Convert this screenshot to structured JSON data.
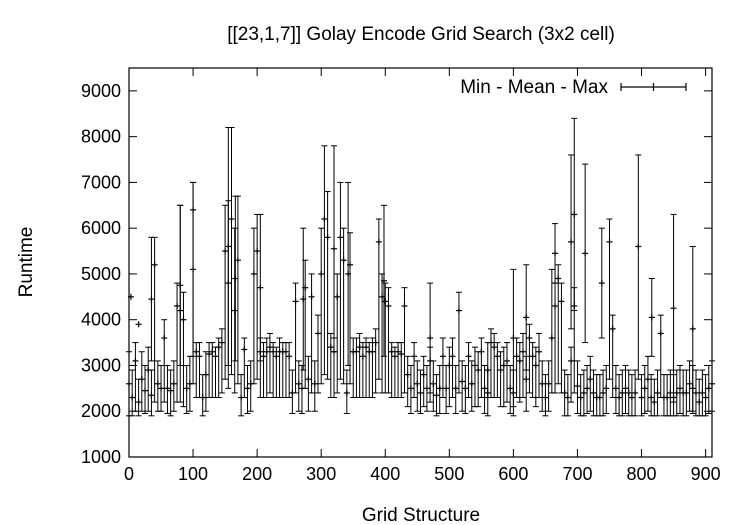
{
  "chart_data": {
    "type": "errorbar-scatter",
    "title": "[[23,1,7]] Golay Encode Grid Search (3x2 cell)",
    "xlabel": "Grid Structure",
    "ylabel": "Runtime",
    "xlim": [
      0,
      910
    ],
    "ylim": [
      1000,
      9500
    ],
    "xticks": [
      0,
      100,
      200,
      300,
      400,
      500,
      600,
      700,
      800,
      900
    ],
    "yticks": [
      1000,
      2000,
      3000,
      4000,
      5000,
      6000,
      7000,
      8000,
      9000
    ],
    "legend": {
      "label": "Min - Mean - Max",
      "position": "top-right"
    },
    "grid": false,
    "series": [
      {
        "name": "Min - Mean - Max",
        "x_start": 0,
        "x_step": 5,
        "mean": [
          2600,
          2300,
          3100,
          2200,
          2700,
          2450,
          2900,
          2350,
          5200,
          2600,
          2500,
          3600,
          2500,
          2450,
          2600,
          4300,
          4200,
          4000,
          2500,
          2600,
          6400,
          3300,
          3200,
          2300,
          2800,
          3250,
          3300,
          3200,
          3400,
          3500,
          5500,
          4800,
          6200,
          4200,
          5300,
          2300,
          3350,
          2500,
          2600,
          5000,
          5500,
          3300,
          3200,
          3300,
          3400,
          3300,
          3200,
          3300,
          3300,
          3300,
          3200,
          2400,
          4400,
          2600,
          2500,
          4700,
          2700,
          4500,
          2600,
          3700,
          5000,
          6200,
          5800,
          3400,
          3300,
          4500,
          5800,
          5300,
          2400,
          5200,
          3300,
          3300,
          3400,
          3200,
          3400,
          3300,
          3300,
          3500,
          5700,
          4500,
          4400,
          4300,
          3300,
          3200,
          3300,
          3250,
          4300,
          2800,
          2500,
          3200,
          2600,
          2400,
          2800,
          2500,
          3100,
          2600,
          2350,
          2500,
          3200,
          2500,
          3000,
          3200,
          2500,
          4200,
          2650,
          2500,
          3200,
          2600,
          3000,
          2900,
          3300,
          2500,
          2400,
          3500,
          3400,
          3200,
          2900,
          3000,
          3100,
          2500,
          2400,
          3200,
          3100,
          3300,
          2700,
          3600,
          3200,
          3000,
          3300,
          2600,
          2300,
          2600,
          3600,
          4300,
          4900,
          4400,
          2400,
          2300,
          3100,
          4300,
          2550,
          2300,
          2400,
          2500,
          2700,
          2400,
          2300,
          2300,
          2400,
          2500,
          5700,
          3800,
          2500,
          2300,
          2400,
          2500,
          2400,
          2300,
          2400,
          5600,
          2300,
          2500,
          2700,
          2300,
          2200,
          2400,
          3700,
          2300,
          2300,
          2400,
          2300,
          2400,
          2500,
          2400,
          2400,
          2600,
          2500,
          2400,
          2200,
          2400,
          2300,
          2500,
          2600,
          2300,
          2400,
          2200,
          2300,
          2400,
          2500,
          2400,
          2300,
          2200,
          2100,
          2200,
          2400,
          2300,
          2200,
          2300,
          2100,
          2400,
          2300,
          2200
        ],
        "range_low": [
          1900,
          1900,
          2000,
          1900,
          2000,
          1950,
          2000,
          1900,
          2200,
          2000,
          2000,
          2200,
          1950,
          1900,
          2000,
          2200,
          2200,
          2100,
          1950,
          2000,
          2600,
          2300,
          2300,
          1900,
          2000,
          2300,
          2300,
          2300,
          2300,
          2400,
          2700,
          2500,
          2800,
          2400,
          2600,
          1900,
          2300,
          1950,
          2000,
          2600,
          2700,
          2300,
          2300,
          2300,
          2400,
          2300,
          2300,
          2300,
          2300,
          2300,
          2300,
          1950,
          2400,
          2000,
          1950,
          2500,
          2000,
          2400,
          2000,
          2400,
          2600,
          2800,
          2700,
          2300,
          2300,
          2400,
          2700,
          2600,
          1950,
          2600,
          2300,
          2300,
          2300,
          2300,
          2300,
          2300,
          2300,
          2400,
          2700,
          2400,
          2400,
          2400,
          2300,
          2300,
          2300,
          2300,
          2400,
          2100,
          1950,
          2300,
          2000,
          1950,
          2100,
          2000,
          2200,
          2000,
          1900,
          1950,
          2300,
          1950,
          2100,
          2300,
          1950,
          2400,
          2000,
          1950,
          2300,
          2000,
          2100,
          2100,
          2300,
          1950,
          1900,
          2300,
          2300,
          2300,
          2100,
          2100,
          2200,
          1950,
          1900,
          2300,
          2200,
          2300,
          2000,
          2400,
          2300,
          2100,
          2300,
          2000,
          1900,
          2000,
          2400,
          2400,
          2600,
          2400,
          1900,
          1900,
          2200,
          2400,
          1950,
          1900,
          1900,
          1950,
          2000,
          1900,
          1900,
          1900,
          1900,
          1950,
          2700,
          2300,
          1950,
          1900,
          1900,
          1950,
          1900,
          1900,
          1900,
          2700,
          1900,
          1950,
          2000,
          1900,
          1900,
          1900,
          2300,
          1900,
          1900,
          1900,
          1900,
          1900,
          1950,
          1900,
          1900,
          2000,
          1950,
          1900,
          1900,
          1900,
          1900,
          1950,
          2000,
          1900,
          1900,
          1850,
          1900,
          1900,
          1950,
          1900,
          1900,
          1850,
          1800,
          1850,
          1900,
          1900,
          1850,
          1900,
          1800,
          1900,
          1900,
          1850
        ],
        "range_high": [
          3300,
          2900,
          3500,
          2700,
          3300,
          3000,
          3400,
          2900,
          5800,
          3100,
          3000,
          4000,
          3000,
          2900,
          3100,
          4800,
          6500,
          4600,
          3000,
          3200,
          7000,
          3500,
          3500,
          2800,
          3300,
          3500,
          3500,
          3400,
          3600,
          3800,
          6500,
          6600,
          8200,
          6000,
          6700,
          2800,
          3600,
          3000,
          3100,
          6000,
          6300,
          3600,
          3500,
          3600,
          3700,
          3500,
          3400,
          3600,
          3500,
          3500,
          3500,
          2900,
          4800,
          3100,
          3000,
          5300,
          3200,
          5000,
          3100,
          4100,
          6000,
          7800,
          6800,
          3700,
          3600,
          5000,
          7000,
          6000,
          2900,
          5900,
          3600,
          3600,
          3700,
          3500,
          3600,
          3500,
          3600,
          3800,
          6200,
          5000,
          4800,
          4700,
          3500,
          3400,
          3500,
          3500,
          4700,
          3200,
          3000,
          3500,
          3100,
          2900,
          3200,
          3000,
          3400,
          3100,
          2800,
          3000,
          3600,
          3000,
          3400,
          3600,
          3000,
          4600,
          3100,
          3000,
          3500,
          3100,
          3400,
          3300,
          3600,
          3000,
          2900,
          3800,
          3700,
          3500,
          3300,
          3400,
          3500,
          3000,
          2900,
          3600,
          3500,
          3700,
          3200,
          3900,
          3500,
          3400,
          3700,
          3100,
          2800,
          3100,
          5100,
          4800,
          5200,
          4800,
          2900,
          2800,
          3400,
          4700,
          3100,
          2800,
          2900,
          3000,
          3200,
          2900,
          2800,
          2800,
          2900,
          3000,
          6200,
          4100,
          3000,
          2800,
          2900,
          3000,
          2900,
          2800,
          2900,
          7600,
          2800,
          3000,
          3200,
          2800,
          2700,
          2900,
          4100,
          2800,
          2800,
          2900,
          2800,
          2900,
          3000,
          2900,
          2900,
          3100,
          3000,
          2900,
          2700,
          2900,
          2800,
          3000,
          3100,
          2800,
          2900,
          2700,
          2800,
          2900,
          3000,
          2900,
          2800,
          2700,
          2600,
          2700,
          2900,
          2800,
          2700,
          2800,
          2600,
          2900,
          2800,
          2700
        ]
      }
    ],
    "peaks": [
      {
        "x": 155,
        "low": 3000,
        "high": 8200
      },
      {
        "x": 320,
        "low": 3300,
        "high": 7800
      },
      {
        "x": 695,
        "low": 4200,
        "high": 8400
      },
      {
        "x": 690,
        "low": 3800,
        "high": 7600
      },
      {
        "x": 712,
        "low": 3500,
        "high": 7400
      },
      {
        "x": 100,
        "low": 3200,
        "high": 7000
      },
      {
        "x": 342,
        "low": 3000,
        "high": 7000
      },
      {
        "x": 166,
        "low": 3100,
        "high": 6700
      },
      {
        "x": 80,
        "low": 3000,
        "high": 6500
      },
      {
        "x": 850,
        "low": 2200,
        "high": 6300
      },
      {
        "x": 35,
        "low": 3100,
        "high": 5800
      },
      {
        "x": 205,
        "low": 3100,
        "high": 6300
      },
      {
        "x": 272,
        "low": 2900,
        "high": 6000
      },
      {
        "x": 398,
        "low": 3200,
        "high": 6500
      },
      {
        "x": 738,
        "low": 3600,
        "high": 6000
      },
      {
        "x": 816,
        "low": 3200,
        "high": 4900
      },
      {
        "x": 620,
        "low": 2900,
        "high": 5200
      },
      {
        "x": 470,
        "low": 2400,
        "high": 4800
      },
      {
        "x": 665,
        "low": 4800,
        "high": 6100
      },
      {
        "x": 880,
        "low": 2000,
        "high": 5600
      },
      {
        "x": 600,
        "low": 2100,
        "high": 5100
      },
      {
        "x": 560,
        "low": 2300,
        "high": 3500
      }
    ],
    "outliers": [
      {
        "x": 3,
        "value": 4500
      },
      {
        "x": 15,
        "value": 3900
      }
    ]
  }
}
